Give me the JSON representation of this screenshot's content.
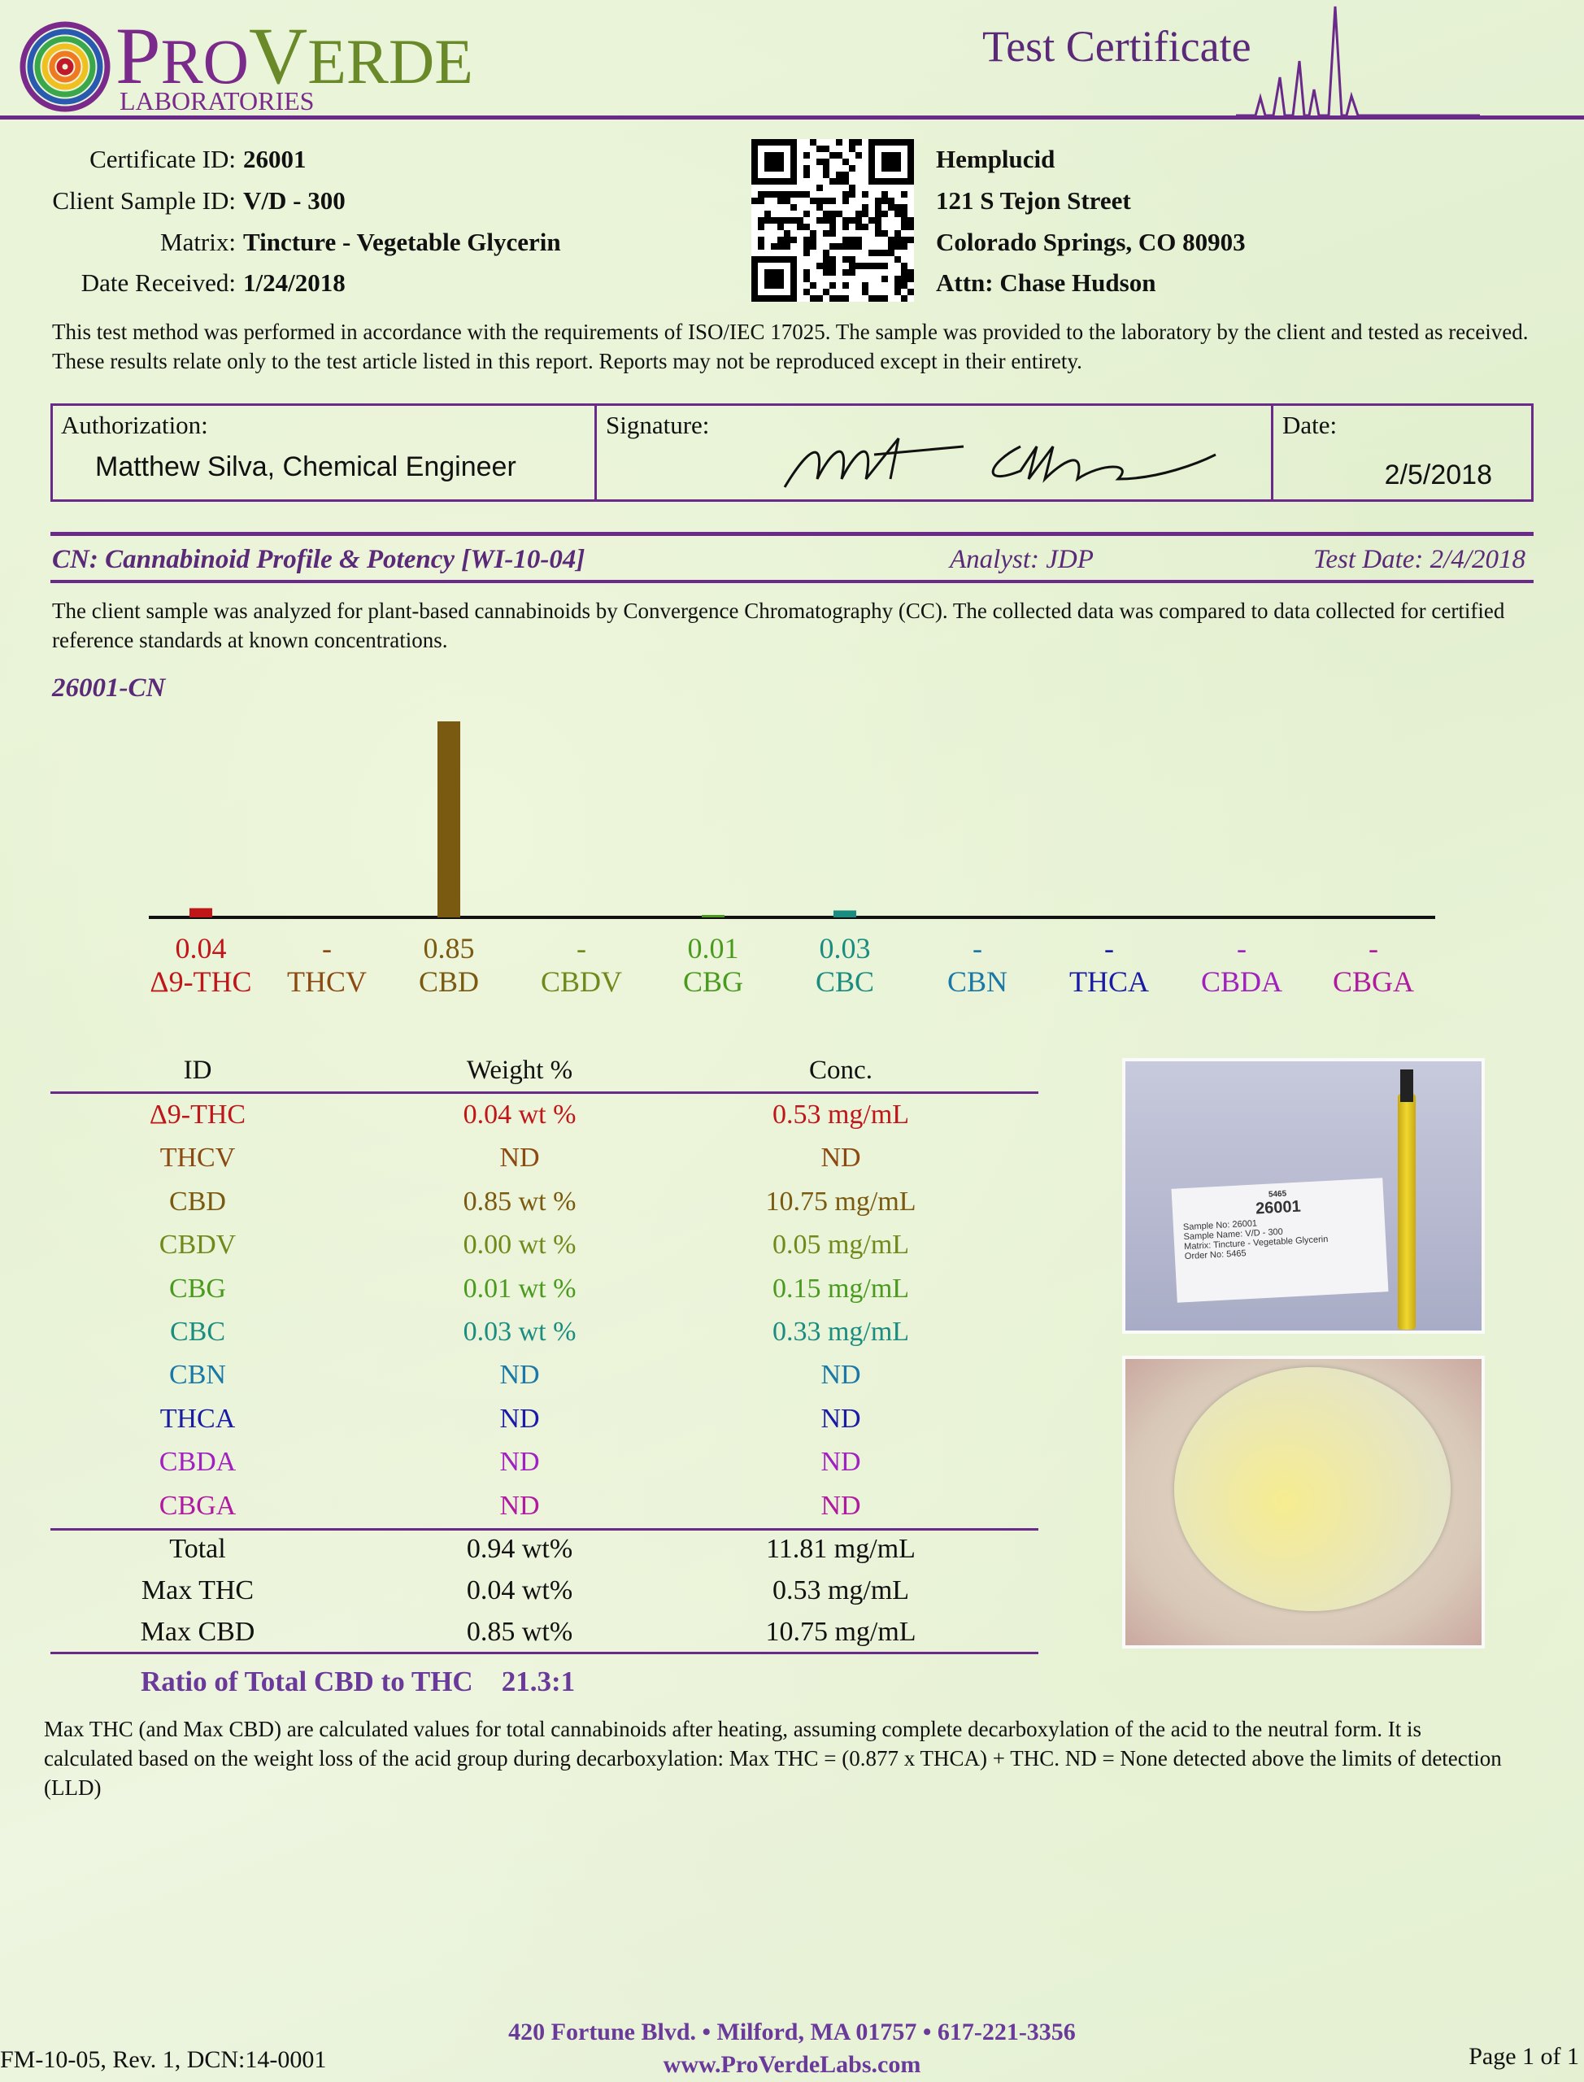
{
  "header": {
    "logo_text": "ProVerde Laboratories",
    "title": "Test Certificate"
  },
  "certificate": [
    {
      "label": "Certificate ID:",
      "value": "26001"
    },
    {
      "label": "Client Sample ID:",
      "value": "V/D - 300"
    },
    {
      "label": "Matrix:",
      "value": "Tincture - Vegetable Glycerin"
    },
    {
      "label": "Date Received:",
      "value": "1/24/2018"
    }
  ],
  "client": [
    "Hemplucid",
    "121 S Tejon Street",
    "Colorado Springs, CO  80903",
    "Attn: Chase Hudson"
  ],
  "intro": "This test method was performed in accordance with the requirements of ISO/IEC 17025. The sample was provided to the laboratory by the client and tested as received. These results relate only to the test article listed in this report. Reports may not be reproduced except in their entirety.",
  "auth": {
    "auth_label": "Authorization:",
    "auth_name": "Matthew Silva, Chemical Engineer",
    "sig_label": "Signature:",
    "date_label": "Date:",
    "date": "2/5/2018"
  },
  "section": {
    "title": "CN: Cannabinoid Profile & Potency [WI-10-04]",
    "analyst": "Analyst: JDP",
    "test_date": "Test Date: 2/4/2018",
    "description": "The client sample was analyzed for plant-based cannabinoids by Convergence Chromatography (CC).  The collected data was compared to data collected for certified reference standards at known concentrations."
  },
  "chart_data": {
    "type": "bar",
    "title": "26001-CN",
    "categories": [
      "Δ9-THC",
      "THCV",
      "CBD",
      "CBDV",
      "CBG",
      "CBC",
      "CBN",
      "THCA",
      "CBDA",
      "CBGA"
    ],
    "values": [
      0.04,
      null,
      0.85,
      0.0,
      0.01,
      0.03,
      null,
      null,
      null,
      null
    ],
    "labels": [
      "0.04",
      "-",
      "0.85",
      "-",
      "0.01",
      "0.03",
      "-",
      "-",
      "-",
      "-"
    ],
    "colors": [
      "#c0161a",
      "#8b4a12",
      "#7a5a10",
      "#6f8a1a",
      "#4a9a1f",
      "#1a8c80",
      "#1a78a8",
      "#1a1aa8",
      "#a020c0",
      "#b01aa0"
    ],
    "ylim": [
      0,
      0.85
    ],
    "grid": false
  },
  "table": {
    "headers": [
      "ID",
      "Weight %",
      "Conc."
    ],
    "rows": [
      [
        "Δ9-THC",
        "0.04 wt %",
        "0.53 mg/mL"
      ],
      [
        "THCV",
        "ND",
        "ND"
      ],
      [
        "CBD",
        "0.85 wt %",
        "10.75 mg/mL"
      ],
      [
        "CBDV",
        "0.00 wt %",
        "0.05 mg/mL"
      ],
      [
        "CBG",
        "0.01 wt %",
        "0.15 mg/mL"
      ],
      [
        "CBC",
        "0.03 wt %",
        "0.33 mg/mL"
      ],
      [
        "CBN",
        "ND",
        "ND"
      ],
      [
        "THCA",
        "ND",
        "ND"
      ],
      [
        "CBDA",
        "ND",
        "ND"
      ],
      [
        "CBGA",
        "ND",
        "ND"
      ]
    ],
    "totals": [
      [
        "Total",
        "0.94 wt%",
        "11.81 mg/mL"
      ],
      [
        "Max THC",
        "0.04 wt%",
        "0.53 mg/mL"
      ],
      [
        "Max CBD",
        "0.85 wt%",
        "10.75 mg/mL"
      ]
    ]
  },
  "ratio": {
    "label": "Ratio of Total CBD to THC",
    "value": "21.3:1"
  },
  "sample_label": {
    "order_top": "5465",
    "id": "26001",
    "lines": [
      "Sample No:   26001",
      "Sample Name: V/D - 300",
      "Matrix: Tincture - Vegetable Glycerin",
      "Order No: 5465"
    ]
  },
  "footnote": "Max THC (and Max CBD) are calculated values for total cannabinoids after heating, assuming complete decarboxylation of the acid to the neutral form. It is calculated based on the weight loss of the acid group during decarboxylation:   Max THC = (0.877 x THCA) + THC.  ND = None detected above the limits of detection (LLD)",
  "footer": {
    "form": "FM-10-05, Rev. 1, DCN:14-0001",
    "address": "420 Fortune Blvd. • Milford, MA 01757 • 617-221-3356",
    "url": "www.ProVerdeLabs.com",
    "page": "Page 1 of 1"
  }
}
